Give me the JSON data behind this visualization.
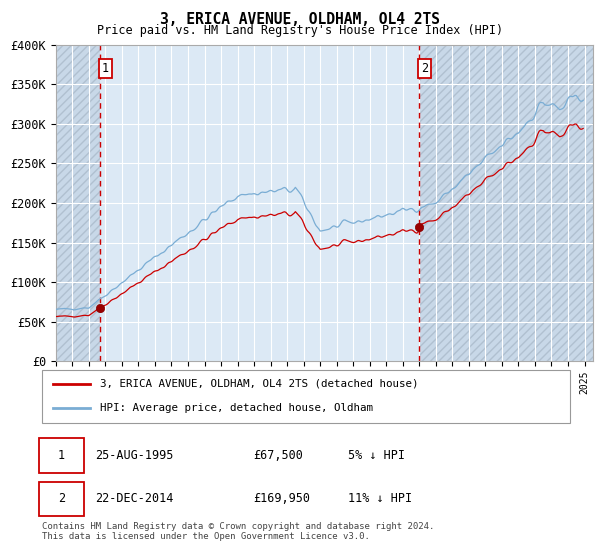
{
  "title": "3, ERICA AVENUE, OLDHAM, OL4 2TS",
  "subtitle": "Price paid vs. HM Land Registry's House Price Index (HPI)",
  "ylim": [
    0,
    400000
  ],
  "yticks": [
    0,
    50000,
    100000,
    150000,
    200000,
    250000,
    300000,
    350000,
    400000
  ],
  "ytick_labels": [
    "£0",
    "£50K",
    "£100K",
    "£150K",
    "£200K",
    "£250K",
    "£300K",
    "£350K",
    "£400K"
  ],
  "hpi_color": "#7aadd4",
  "price_color": "#cc0000",
  "marker_color": "#990000",
  "bg_color": "#dce9f5",
  "hatch_color": "#c8d8e8",
  "grid_color": "#ffffff",
  "annotation_box_color": "#cc0000",
  "legend_label_red": "3, ERICA AVENUE, OLDHAM, OL4 2TS (detached house)",
  "legend_label_blue": "HPI: Average price, detached house, Oldham",
  "annotation1": {
    "label": "1",
    "date": "25-AUG-1995",
    "price": "£67,500",
    "note": "5% ↓ HPI"
  },
  "annotation2": {
    "label": "2",
    "date": "22-DEC-2014",
    "price": "£169,950",
    "note": "11% ↓ HPI"
  },
  "footer": "Contains HM Land Registry data © Crown copyright and database right 2024.\nThis data is licensed under the Open Government Licence v3.0.",
  "sale1_year": 1995.646,
  "sale1_price": 67500,
  "sale2_year": 2014.972,
  "sale2_price": 169950,
  "vline1_year": 1995.646,
  "vline2_year": 2014.972
}
